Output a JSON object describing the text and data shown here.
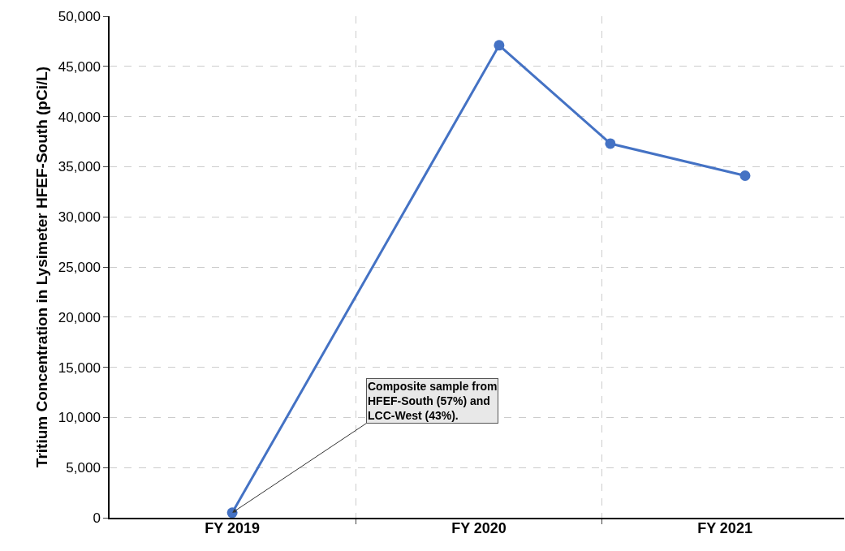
{
  "chart_data": {
    "type": "line",
    "ylabel": "Tritium Concentration in Lysimeter HFEF-South (pCi/L)",
    "x": [
      "2019-04-01",
      "2020-05-01",
      "2020-10-13",
      "2021-05-01"
    ],
    "series": [
      {
        "color": "#4472c4",
        "values": [
          500,
          47100,
          37300,
          34100
        ]
      }
    ],
    "xlim": [
      "2018-10-01",
      "2021-09-25"
    ],
    "xticks": [
      {
        "value": "2019-04-01",
        "label": "FY 2019"
      },
      {
        "value": "2019-10-01",
        "label": null
      },
      {
        "value": "2020-04-01",
        "label": "FY 2020"
      },
      {
        "value": "2020-10-01",
        "label": null
      },
      {
        "value": "2021-04-01",
        "label": "FY 2021"
      }
    ],
    "ylim": [
      0,
      50000
    ],
    "yticks": [
      {
        "value": 0,
        "label": "0"
      },
      {
        "value": 5000,
        "label": "5,000"
      },
      {
        "value": 10000,
        "label": "10,000"
      },
      {
        "value": 15000,
        "label": "15,000"
      },
      {
        "value": 20000,
        "label": "20,000"
      },
      {
        "value": 25000,
        "label": "25,000"
      },
      {
        "value": 30000,
        "label": "30,000"
      },
      {
        "value": 35000,
        "label": "35,000"
      },
      {
        "value": 40000,
        "label": "40,000"
      },
      {
        "value": 45000,
        "label": "45,000"
      },
      {
        "value": 50000,
        "label": "50,000"
      }
    ],
    "grid": true,
    "marker": "circle",
    "line_style": "solid",
    "annotations": [
      {
        "text": "Composite sample from\nHFEF-South (57%) and\nLCC-West (43%).",
        "x": "2019-04-01",
        "y": 500
      }
    ]
  }
}
